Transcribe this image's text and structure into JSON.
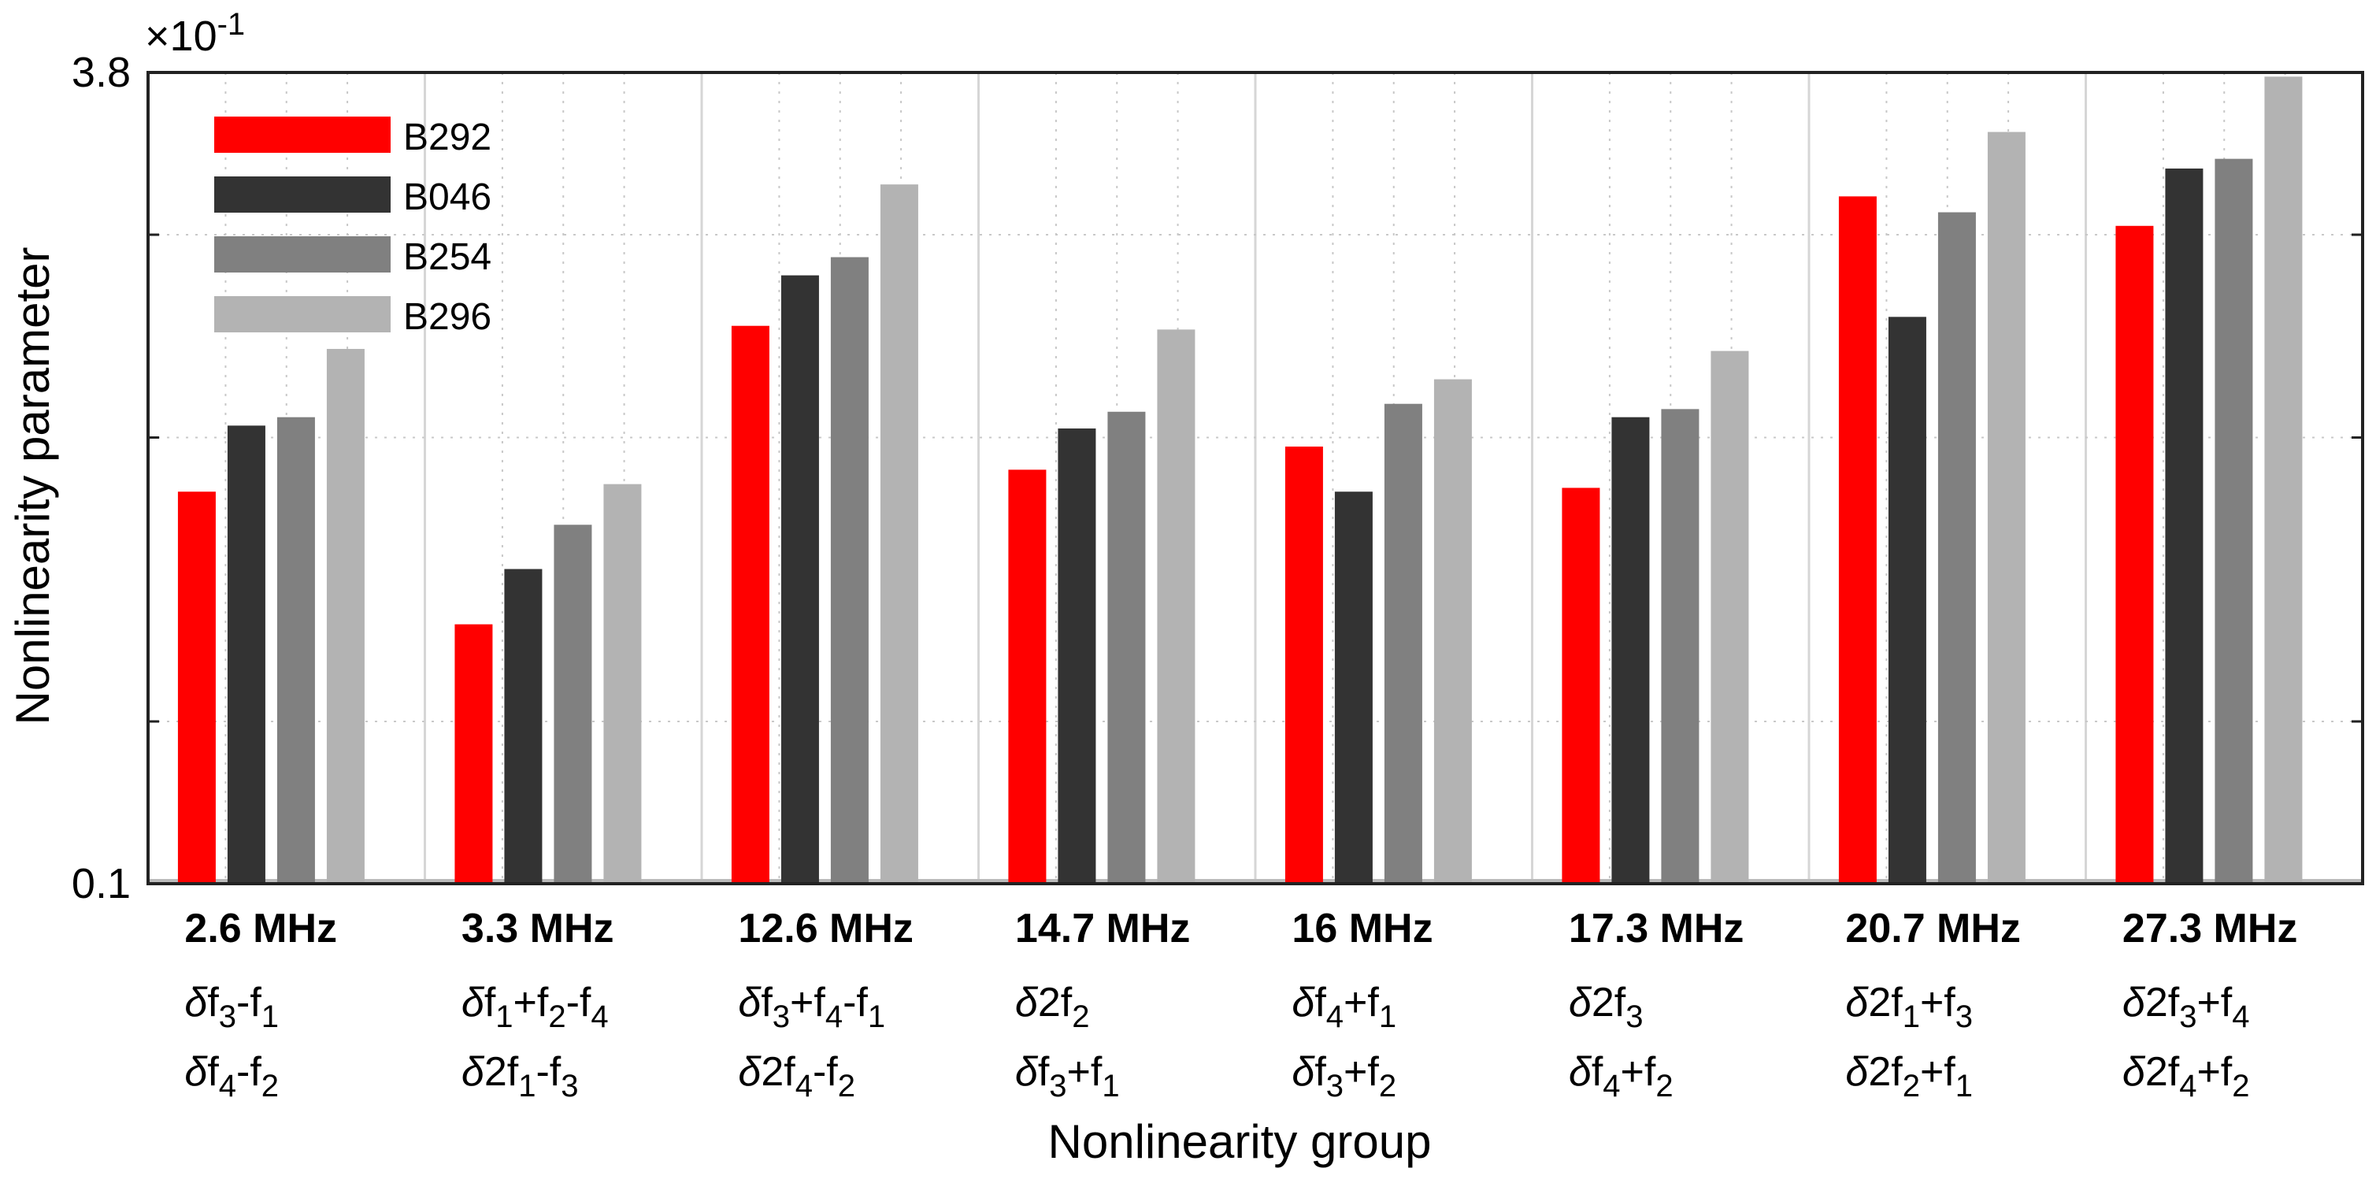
{
  "chart_data": {
    "type": "bar",
    "yscale": "log",
    "exponent_label": "×10",
    "exponent_power": "-1",
    "ylim": [
      0.1,
      3.8
    ],
    "ytick_labels": [
      "0.1",
      "3.8"
    ],
    "xlabel": "Nonlinearity group",
    "ylabel": "Nonlinearity parameter",
    "legend_position": "top-left",
    "groups": [
      {
        "freq": "2.6 MHz",
        "line1": {
          "prefix": "δf",
          "parts": [
            [
              "3",
              "sub"
            ],
            [
              "-f",
              "n"
            ],
            [
              "1",
              "sub"
            ]
          ]
        },
        "line2": {
          "prefix": "δf",
          "parts": [
            [
              "4",
              "sub"
            ],
            [
              "-f",
              "n"
            ],
            [
              "2",
              "sub"
            ]
          ]
        }
      },
      {
        "freq": "3.3 MHz",
        "line1": {
          "prefix": "δf",
          "parts": [
            [
              "1",
              "sub"
            ],
            [
              "+f",
              "n"
            ],
            [
              "2",
              "sub"
            ],
            [
              "-f",
              "n"
            ],
            [
              "4",
              "sub"
            ]
          ]
        },
        "line2": {
          "prefix": "δ2f",
          "parts": [
            [
              "1",
              "sub"
            ],
            [
              "-f",
              "n"
            ],
            [
              "3",
              "sub"
            ]
          ]
        }
      },
      {
        "freq": "12.6 MHz",
        "line1": {
          "prefix": "δf",
          "parts": [
            [
              "3",
              "sub"
            ],
            [
              "+f",
              "n"
            ],
            [
              "4",
              "sub"
            ],
            [
              "-f",
              "n"
            ],
            [
              "1",
              "sub"
            ]
          ]
        },
        "line2": {
          "prefix": "δ2f",
          "parts": [
            [
              "4",
              "sub"
            ],
            [
              "-f",
              "n"
            ],
            [
              "2",
              "sub"
            ]
          ]
        }
      },
      {
        "freq": "14.7 MHz",
        "line1": {
          "prefix": "δ2f",
          "parts": [
            [
              "2",
              "sub"
            ]
          ]
        },
        "line2": {
          "prefix": "δf",
          "parts": [
            [
              "3",
              "sub"
            ],
            [
              "+f",
              "n"
            ],
            [
              "1",
              "sub"
            ]
          ]
        }
      },
      {
        "freq": "16 MHz",
        "line1": {
          "prefix": "δf",
          "parts": [
            [
              "4",
              "sub"
            ],
            [
              "+f",
              "n"
            ],
            [
              "1",
              "sub"
            ]
          ]
        },
        "line2": {
          "prefix": "δf",
          "parts": [
            [
              "3",
              "sub"
            ],
            [
              "+f",
              "n"
            ],
            [
              "2",
              "sub"
            ]
          ]
        }
      },
      {
        "freq": "17.3 MHz",
        "line1": {
          "prefix": "δ2f",
          "parts": [
            [
              "3",
              "sub"
            ]
          ]
        },
        "line2": {
          "prefix": "δf",
          "parts": [
            [
              "4",
              "sub"
            ],
            [
              "+f",
              "n"
            ],
            [
              "2",
              "sub"
            ]
          ]
        }
      },
      {
        "freq": "20.7 MHz",
        "line1": {
          "prefix": "δ2f",
          "parts": [
            [
              "1",
              "sub"
            ],
            [
              "+f",
              "n"
            ],
            [
              "3",
              "sub"
            ]
          ]
        },
        "line2": {
          "prefix": "δ2f",
          "parts": [
            [
              "2",
              "sub"
            ],
            [
              "+f",
              "n"
            ],
            [
              "1",
              "sub"
            ]
          ]
        }
      },
      {
        "freq": "27.3 MHz",
        "line1": {
          "prefix": "δ2f",
          "parts": [
            [
              "3",
              "sub"
            ],
            [
              "+f",
              "n"
            ],
            [
              "4",
              "sub"
            ]
          ]
        },
        "line2": {
          "prefix": "δ2f",
          "parts": [
            [
              "4",
              "sub"
            ],
            [
              "+f",
              "n"
            ],
            [
              "2",
              "sub"
            ]
          ]
        }
      }
    ],
    "series": [
      {
        "name": "B292",
        "color": "#ff0000",
        "values": [
          0.58,
          0.32,
          1.22,
          0.64,
          0.71,
          0.59,
          2.18,
          1.91
        ]
      },
      {
        "name": "B046",
        "color": "#333333",
        "values": [
          0.78,
          0.41,
          1.53,
          0.77,
          0.58,
          0.81,
          1.27,
          2.47
        ]
      },
      {
        "name": "B254",
        "color": "#808080",
        "values": [
          0.81,
          0.5,
          1.66,
          0.83,
          0.86,
          0.84,
          2.03,
          2.58
        ]
      },
      {
        "name": "B296",
        "color": "#b3b3b3",
        "values": [
          1.1,
          0.6,
          2.3,
          1.2,
          0.96,
          1.09,
          2.91,
          3.73
        ]
      }
    ]
  }
}
